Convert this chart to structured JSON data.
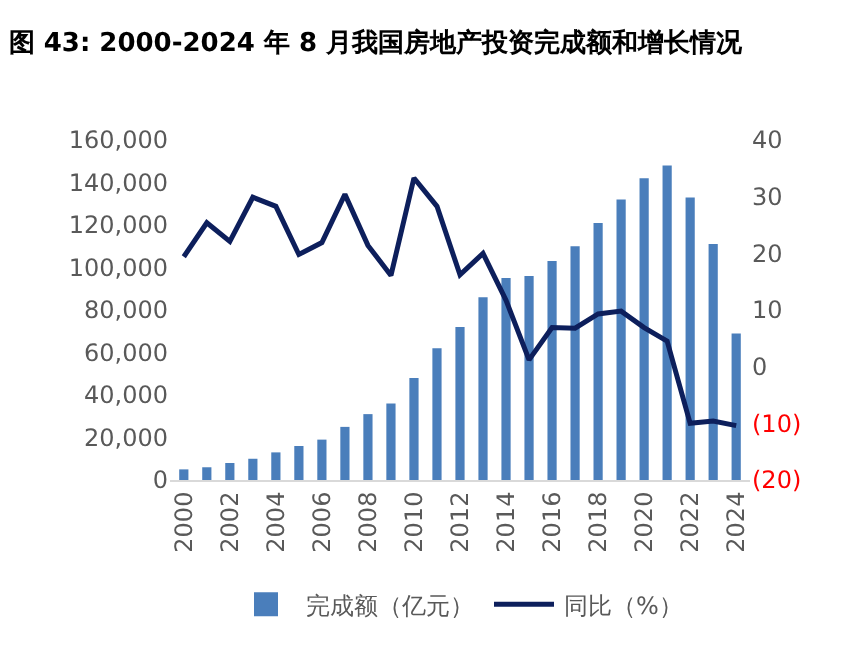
{
  "chart_data": {
    "type": "bar",
    "title": "图 43: 2000-2024 年 8 月我国房地产投资完成额和增长情况",
    "categories": [
      "2000",
      null,
      "2002",
      null,
      "2004",
      null,
      "2006",
      null,
      "2008",
      null,
      "2010",
      null,
      "2012",
      null,
      "2014",
      null,
      "2016",
      null,
      "2018",
      null,
      "2020",
      null,
      "2022",
      null,
      "2024"
    ],
    "series": [
      {
        "name": "完成额（亿元）",
        "color": "#4a7ebb",
        "values": [
          5000,
          6000,
          8000,
          10000,
          13000,
          16000,
          19000,
          25000,
          31000,
          36000,
          48000,
          62000,
          72000,
          86000,
          95000,
          96000,
          103000,
          110000,
          121000,
          132000,
          142000,
          148000,
          133000,
          111000,
          69000
        ]
      },
      {
        "name": "同比（%）",
        "type": "line",
        "axis": "y2",
        "color": "#0d1f5c",
        "values": [
          19.4,
          25.4,
          22.1,
          29.9,
          28.3,
          19.8,
          21.9,
          30.4,
          21.4,
          16.1,
          33.3,
          28.3,
          16.2,
          20.0,
          11.7,
          1.2,
          6.9,
          6.8,
          9.3,
          9.8,
          6.9,
          4.5,
          -10.0,
          -9.6,
          -10.4
        ]
      }
    ],
    "ylim": [
      0,
      160000
    ],
    "yticks": [
      {
        "value": 0,
        "label": "0"
      },
      {
        "value": 20000,
        "label": "20,000"
      },
      {
        "value": 40000,
        "label": "40,000"
      },
      {
        "value": 60000,
        "label": "60,000"
      },
      {
        "value": 80000,
        "label": "80,000"
      },
      {
        "value": 100000,
        "label": "100,000"
      },
      {
        "value": 120000,
        "label": "120,000"
      },
      {
        "value": 140000,
        "label": "140,000"
      },
      {
        "value": 160000,
        "label": "160,000"
      }
    ],
    "y2lim": [
      -20,
      40
    ],
    "y2ticks": [
      {
        "value": -20,
        "label": "(20)"
      },
      {
        "value": -10,
        "label": "(10)"
      },
      0,
      10,
      20,
      30,
      40
    ],
    "grid": false,
    "legend": "bottom",
    "marker": "none",
    "line_style": "solid"
  }
}
